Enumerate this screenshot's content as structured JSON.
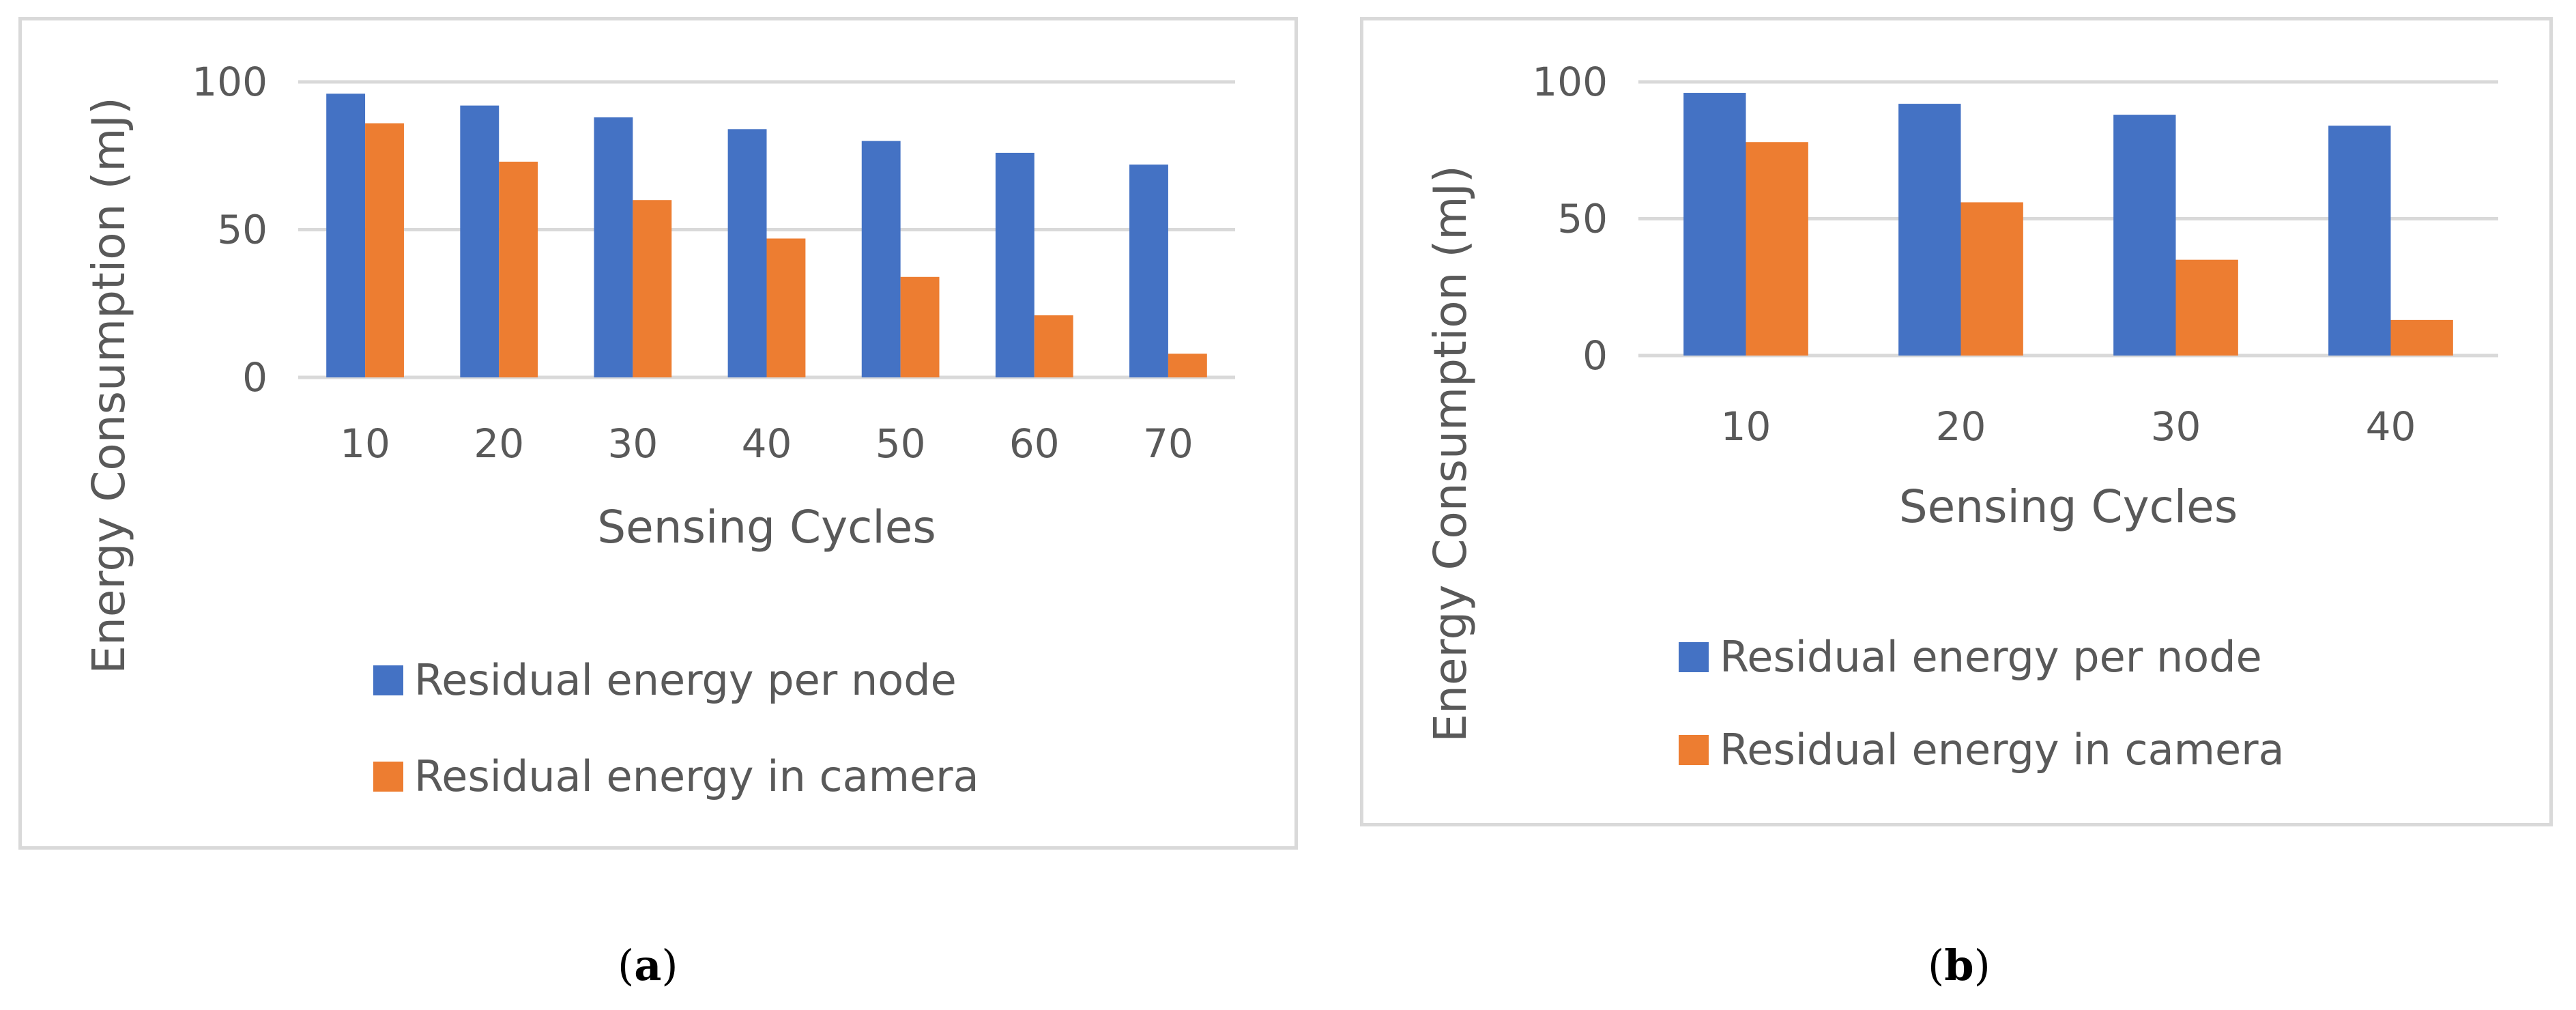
{
  "chart_data": [
    {
      "type": "bar",
      "panel_label": "a",
      "categories": [
        "10",
        "20",
        "30",
        "40",
        "50",
        "60",
        "70"
      ],
      "series": [
        {
          "name": "Residual energy per node",
          "color": "#4472c4",
          "values": [
            96,
            92,
            88,
            84,
            80,
            76,
            72
          ]
        },
        {
          "name": "Residual energy in camera",
          "color": "#ed7d31",
          "values": [
            86,
            73,
            60,
            47,
            34,
            21,
            8
          ]
        }
      ],
      "title": "",
      "xlabel": "Sensing Cycles",
      "ylabel": "Energy Consumption (mJ)",
      "ylim": [
        0,
        100
      ],
      "yticks": [
        "0",
        "50",
        "100"
      ],
      "grid": true,
      "legend": "bottom"
    },
    {
      "type": "bar",
      "panel_label": "b",
      "categories": [
        "10",
        "20",
        "30",
        "40"
      ],
      "series": [
        {
          "name": "Residual energy per node",
          "color": "#4472c4",
          "values": [
            96,
            92,
            88,
            84
          ]
        },
        {
          "name": "Residual energy in camera",
          "color": "#ed7d31",
          "values": [
            78,
            56,
            35,
            13
          ]
        }
      ],
      "title": "",
      "xlabel": "Sensing Cycles",
      "ylabel": "Energy Consumption (mJ)",
      "ylim": [
        0,
        100
      ],
      "yticks": [
        "0",
        "50",
        "100"
      ],
      "grid": true,
      "legend": "bottom"
    }
  ],
  "captions": {
    "a": "a",
    "b": "b"
  }
}
